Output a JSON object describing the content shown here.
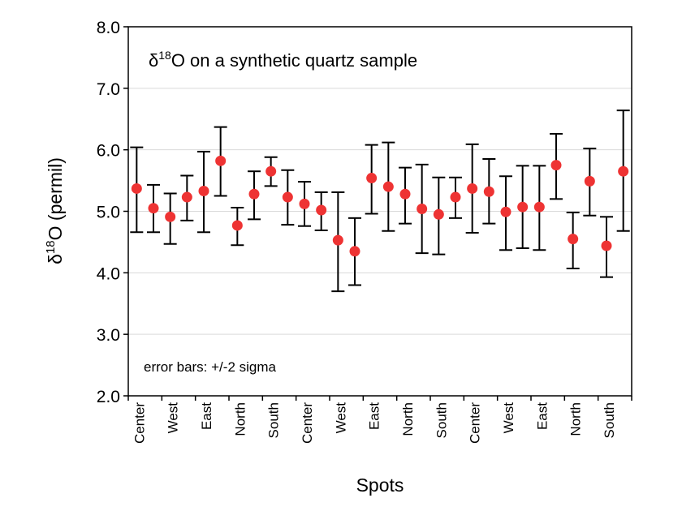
{
  "chart_data": {
    "type": "scatter",
    "title": "δ18O on a synthetic quartz sample",
    "title_parts": {
      "prefix": "δ",
      "sup": "18",
      "suffix": "O on a synthetic quartz sample"
    },
    "annotation": "error bars: +/-2 sigma",
    "xlabel": "Spots",
    "ylabel": "δ18O (permil)",
    "ylabel_parts": {
      "prefix": "δ",
      "sup": "18",
      "suffix": "O (permil)"
    },
    "ylim": [
      2.0,
      8.0
    ],
    "yticks": [
      "2.0",
      "3.0",
      "4.0",
      "5.0",
      "6.0",
      "7.0",
      "8.0"
    ],
    "xtick_labels": [
      "Center",
      "West",
      "East",
      "North",
      "South",
      "Center",
      "West",
      "East",
      "North",
      "South",
      "Center",
      "West",
      "East",
      "North",
      "South"
    ],
    "grid": "horizontal",
    "marker_color": "#ee3333",
    "values": [
      5.37,
      5.05,
      4.91,
      5.23,
      5.33,
      5.82,
      4.77,
      5.28,
      5.65,
      5.23,
      5.12,
      5.02,
      4.53,
      4.35,
      5.54,
      5.4,
      5.28,
      5.04,
      4.95,
      5.23,
      5.37,
      5.32,
      4.99,
      5.07,
      5.07,
      5.75,
      4.55,
      5.49,
      4.44,
      5.65
    ],
    "error_upper": [
      6.04,
      5.43,
      5.29,
      5.58,
      5.97,
      6.37,
      5.06,
      5.65,
      5.88,
      5.67,
      5.48,
      5.31,
      5.31,
      4.89,
      6.08,
      6.12,
      5.71,
      5.76,
      5.55,
      5.55,
      6.09,
      5.85,
      5.57,
      5.74,
      5.74,
      6.26,
      4.98,
      6.02,
      4.91,
      6.64
    ],
    "error_lower": [
      4.66,
      4.66,
      4.47,
      4.85,
      4.66,
      5.25,
      4.45,
      4.87,
      5.41,
      4.78,
      4.76,
      4.69,
      3.7,
      3.8,
      4.96,
      4.68,
      4.8,
      4.32,
      4.3,
      4.89,
      4.65,
      4.8,
      4.37,
      4.4,
      4.37,
      5.2,
      4.07,
      4.93,
      3.93,
      4.68
    ]
  }
}
